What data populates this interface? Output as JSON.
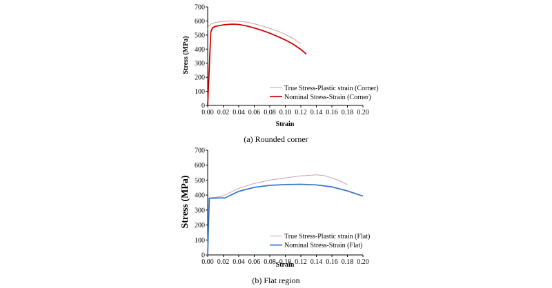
{
  "chart_data": [
    {
      "type": "line",
      "caption": "(a)  Rounded  corner",
      "xlabel": "Strain",
      "ylabel": "Stress  (MPa)",
      "xlim": [
        0,
        0.2
      ],
      "ylim": [
        0,
        700
      ],
      "xticks": [
        "0.00",
        "0.02",
        "0.04",
        "0.06",
        "0.08",
        "0.10",
        "0.12",
        "0.14",
        "0.16",
        "0.18",
        "0.20"
      ],
      "yticks": [
        "0",
        "100",
        "200",
        "300",
        "400",
        "500",
        "600",
        "700"
      ],
      "grid": false,
      "legend_position": "bottom-right",
      "series": [
        {
          "name": "True Stress-Plastic strain (Corner)",
          "color": "#c8a09a",
          "x": [
            0.0,
            0.001,
            0.005,
            0.01,
            0.02,
            0.03,
            0.04,
            0.05,
            0.06,
            0.07,
            0.08,
            0.09,
            0.1,
            0.11,
            0.12
          ],
          "y": [
            540,
            565,
            580,
            590,
            597,
            600,
            598,
            592,
            580,
            565,
            548,
            528,
            505,
            475,
            438
          ]
        },
        {
          "name": "Nominal Stress-Strain (Corner)",
          "color": "#cc0000",
          "x": [
            0.0,
            0.004,
            0.006,
            0.01,
            0.02,
            0.03,
            0.035,
            0.04,
            0.05,
            0.06,
            0.07,
            0.08,
            0.09,
            0.1,
            0.11,
            0.12,
            0.127
          ],
          "y": [
            0,
            520,
            550,
            562,
            572,
            577,
            577,
            575,
            565,
            550,
            533,
            513,
            490,
            465,
            435,
            398,
            365
          ]
        }
      ]
    },
    {
      "type": "line",
      "caption": "(b)  Flat  region",
      "xlabel": "Strain",
      "ylabel": "Stress  (MPa)",
      "xlim": [
        0,
        0.2
      ],
      "ylim": [
        0,
        700
      ],
      "xticks": [
        "0.00",
        "0.02",
        "0.04",
        "0.06",
        "0.08",
        "0.10",
        "0.12",
        "0.14",
        "0.16",
        "0.18",
        "0.20"
      ],
      "yticks": [
        "0",
        "100",
        "200",
        "300",
        "400",
        "500",
        "600",
        "700"
      ],
      "grid": false,
      "legend_position": "bottom-right",
      "series": [
        {
          "name": "True Stress-Plastic strain (Flat)",
          "color": "#c8a0b4",
          "x": [
            0.0,
            0.002,
            0.01,
            0.02,
            0.03,
            0.04,
            0.06,
            0.08,
            0.1,
            0.12,
            0.14,
            0.15,
            0.16,
            0.17,
            0.18
          ],
          "y": [
            380,
            382,
            385,
            395,
            420,
            445,
            478,
            500,
            515,
            528,
            535,
            530,
            515,
            495,
            470
          ]
        },
        {
          "name": "Nominal Stress-Strain (Flat)",
          "color": "#3a78c8",
          "x": [
            0.0,
            0.002,
            0.01,
            0.02,
            0.022,
            0.03,
            0.04,
            0.06,
            0.08,
            0.1,
            0.12,
            0.14,
            0.16,
            0.18,
            0.2
          ],
          "y": [
            0,
            378,
            380,
            382,
            380,
            400,
            425,
            452,
            465,
            470,
            472,
            468,
            455,
            428,
            393
          ]
        }
      ]
    }
  ]
}
